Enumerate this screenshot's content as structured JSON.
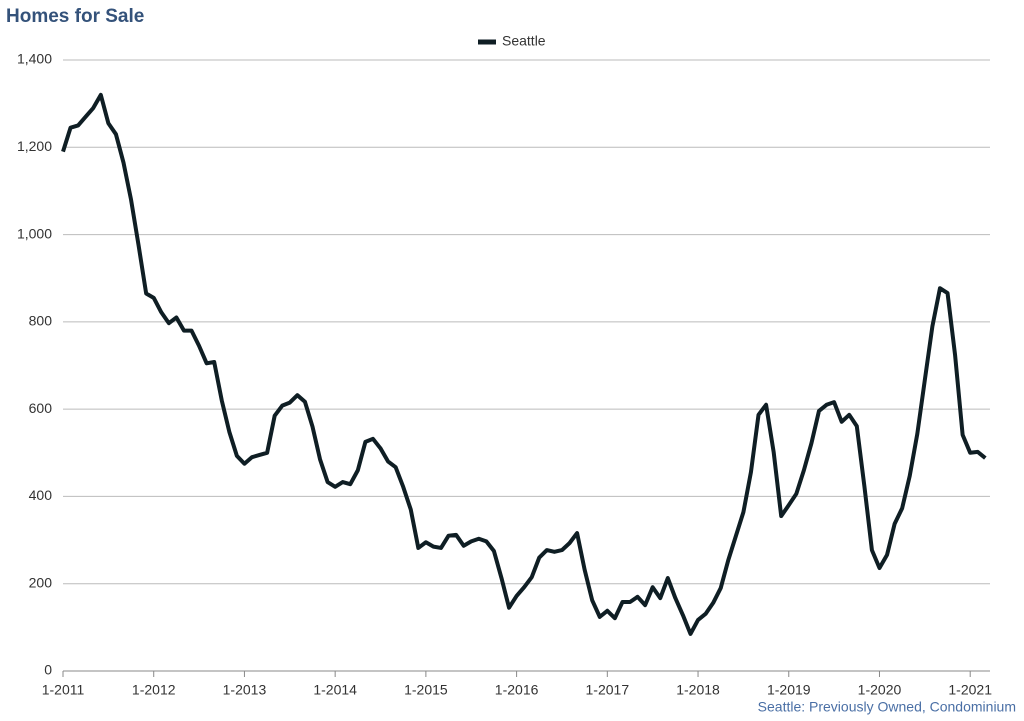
{
  "chart_data": {
    "type": "line",
    "title": "Homes for Sale",
    "note": "Seattle: Previously Owned, Condominium",
    "categories": [
      "1-2011",
      null,
      null,
      null,
      null,
      null,
      null,
      null,
      null,
      null,
      null,
      null,
      "1-2012",
      null,
      null,
      null,
      null,
      null,
      null,
      null,
      null,
      null,
      null,
      null,
      "1-2013",
      null,
      null,
      null,
      null,
      null,
      null,
      null,
      null,
      null,
      null,
      null,
      "1-2014",
      null,
      null,
      null,
      null,
      null,
      null,
      null,
      null,
      null,
      null,
      null,
      "1-2015",
      null,
      null,
      null,
      null,
      null,
      null,
      null,
      null,
      null,
      null,
      null,
      "1-2016",
      null,
      null,
      null,
      null,
      null,
      null,
      null,
      null,
      null,
      null,
      null,
      "1-2017",
      null,
      null,
      null,
      null,
      null,
      null,
      null,
      null,
      null,
      null,
      null,
      "1-2018",
      null,
      null,
      null,
      null,
      null,
      null,
      null,
      null,
      null,
      null,
      null,
      "1-2019",
      null,
      null,
      null,
      null,
      null,
      null,
      null,
      null,
      null,
      null,
      null,
      "1-2020",
      null,
      null,
      null,
      null,
      null,
      null,
      null,
      null,
      null,
      null,
      null,
      "1-2021",
      null,
      null
    ],
    "series": [
      {
        "name": "Seattle",
        "color": "#0f1e24",
        "values": [
          1190,
          1245,
          1250,
          1270,
          1290,
          1320,
          1255,
          1230,
          1165,
          1080,
          975,
          865,
          855,
          822,
          797,
          810,
          780,
          780,
          745,
          705,
          708,
          620,
          548,
          493,
          475,
          490,
          495,
          500,
          585,
          608,
          615,
          632,
          617,
          560,
          485,
          433,
          422,
          433,
          428,
          460,
          525,
          532,
          510,
          480,
          467,
          422,
          370,
          282,
          295,
          285,
          282,
          310,
          312,
          287,
          297,
          303,
          297,
          275,
          213,
          145,
          172,
          192,
          215,
          260,
          277,
          273,
          277,
          293,
          316,
          232,
          162,
          124,
          138,
          121,
          158,
          158,
          170,
          151,
          192,
          167,
          213,
          167,
          128,
          85,
          117,
          131,
          156,
          190,
          254,
          309,
          364,
          456,
          587,
          610,
          502,
          355,
          380,
          406,
          460,
          522,
          596,
          610,
          616,
          571,
          587,
          561,
          424,
          277,
          236,
          266,
          337,
          373,
          447,
          543,
          667,
          790,
          877,
          866,
          724,
          541,
          500,
          502,
          488
        ]
      }
    ],
    "ylim": [
      0,
      1400
    ],
    "yticks": [
      0,
      200,
      400,
      600,
      800,
      {
        "value": 1000,
        "label": "1,000"
      },
      {
        "value": 1200,
        "label": "1,200"
      },
      {
        "value": 1400,
        "label": "1,400"
      }
    ],
    "grid": true,
    "legend": "top"
  }
}
